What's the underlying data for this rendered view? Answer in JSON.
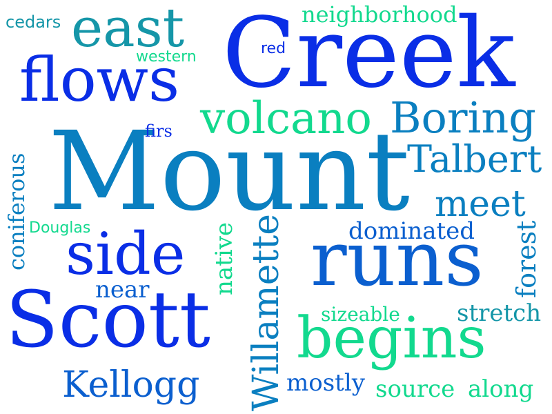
{
  "colors": {
    "background": "#ffffff",
    "blue": "#0a2ee6",
    "mid_blue": "#0b5fcf",
    "sky_blue": "#0a7fc0",
    "teal": "#1596a8",
    "green": "#12d98e"
  },
  "words": {
    "creek": "Creek",
    "mount": "Mount",
    "scott": "Scott",
    "runs": "runs",
    "east": "east",
    "flows": "flows",
    "side": "side",
    "begins": "begins",
    "volcano": "volcano",
    "boring": "Boring",
    "talbert": "Talbert",
    "meet": "meet",
    "kellogg": "Kellogg",
    "willamette": "Willamette",
    "coniferous": "coniferous",
    "forest": "forest",
    "native": "native",
    "neighborhood": "neighborhood",
    "dominated": "dominated",
    "stretch": "stretch",
    "sizeable": "sizeable",
    "source": "source",
    "along": "along",
    "mostly": "mostly",
    "near": "near",
    "douglas": "Douglas",
    "cedars": "cedars",
    "western": "western",
    "red": "red",
    "firs": "firs"
  }
}
